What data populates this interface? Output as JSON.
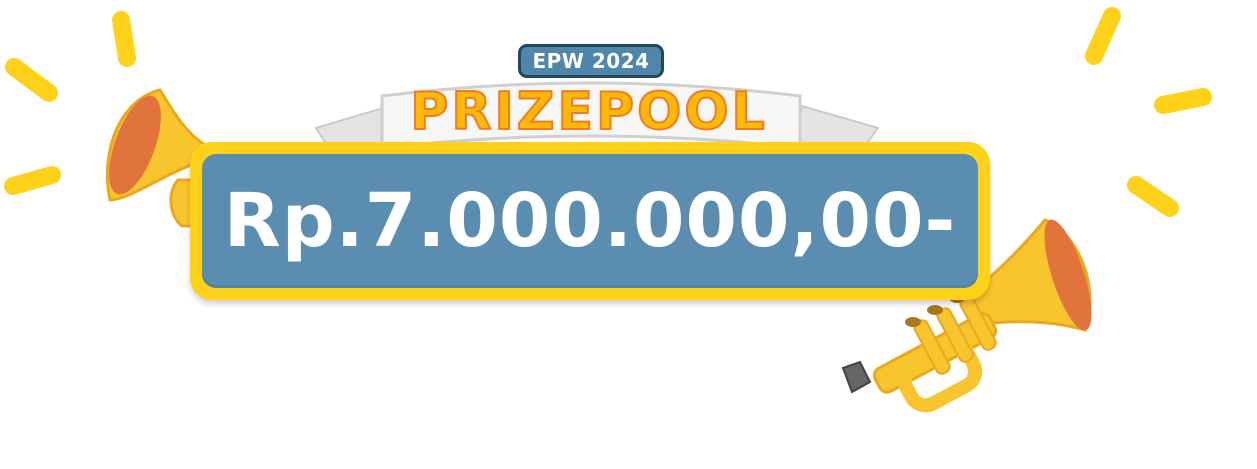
{
  "event": {
    "badge_label": "EPW 2024"
  },
  "banner": {
    "title": "PRIZEPOOL !"
  },
  "prize": {
    "amount": "Rp.7.000.000,00-"
  },
  "colors": {
    "badge_fill": "#4f86a9",
    "badge_border": "#22475e",
    "banner_text": "#fdb909",
    "banner_outline": "#f57a1e",
    "prize_frame": "#ffd21a",
    "prize_fill": "#5b8db0",
    "trumpet_gold": "#f9c52e",
    "trumpet_bell_inner": "#e0743a",
    "sparkle": "#ffd21a"
  },
  "icons": [
    "trumpet-left-icon",
    "trumpet-right-icon",
    "sparkle-rays-icon"
  ]
}
